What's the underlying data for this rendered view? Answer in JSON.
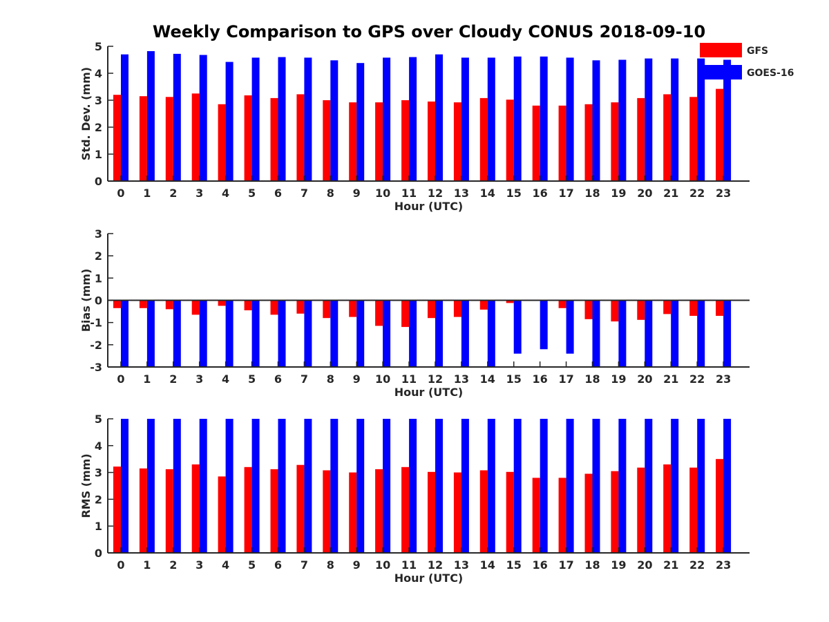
{
  "figure": {
    "title": "Weekly Comparison to GPS over Cloudy CONUS 2018-09-10"
  },
  "colors": {
    "GFS": "#ff0000",
    "GOES-16": "#0000ff",
    "axis": "#262626"
  },
  "chart_data": [
    {
      "type": "bar",
      "xlabel": "Hour (UTC)",
      "ylabel": "Std. Dev. (mm)",
      "ylim": [
        0,
        5
      ],
      "yticks": [
        "0",
        "1",
        "2",
        "3",
        "4",
        "5"
      ],
      "categories": [
        "0",
        "1",
        "2",
        "3",
        "4",
        "5",
        "6",
        "7",
        "8",
        "9",
        "10",
        "11",
        "12",
        "13",
        "14",
        "15",
        "16",
        "17",
        "18",
        "19",
        "20",
        "21",
        "22",
        "23"
      ],
      "legend": {
        "position": "top-right",
        "entries": [
          "GFS",
          "GOES-16"
        ]
      },
      "series": [
        {
          "name": "GFS",
          "values": [
            3.2,
            3.15,
            3.12,
            3.25,
            2.85,
            3.18,
            3.08,
            3.22,
            3.0,
            2.92,
            2.92,
            3.0,
            2.95,
            2.92,
            3.08,
            3.02,
            2.8,
            2.8,
            2.85,
            2.92,
            3.08,
            3.22,
            3.12,
            3.42
          ]
        },
        {
          "name": "GOES-16",
          "values": [
            4.7,
            4.82,
            4.72,
            4.68,
            4.42,
            4.58,
            4.6,
            4.58,
            4.48,
            4.38,
            4.58,
            4.6,
            4.7,
            4.58,
            4.58,
            4.62,
            4.62,
            4.58,
            4.48,
            4.5,
            4.55,
            4.55,
            4.55,
            4.5
          ]
        }
      ]
    },
    {
      "type": "bar",
      "xlabel": "Hour (UTC)",
      "ylabel": "Bias (mm)",
      "ylim": [
        -3,
        3
      ],
      "yticks": [
        "-3",
        "-2",
        "-1",
        "0",
        "1",
        "2",
        "3"
      ],
      "categories": [
        "0",
        "1",
        "2",
        "3",
        "4",
        "5",
        "6",
        "7",
        "8",
        "9",
        "10",
        "11",
        "12",
        "13",
        "14",
        "15",
        "16",
        "17",
        "18",
        "19",
        "20",
        "21",
        "22",
        "23"
      ],
      "series": [
        {
          "name": "GFS",
          "values": [
            -0.35,
            -0.35,
            -0.4,
            -0.65,
            -0.25,
            -0.45,
            -0.65,
            -0.6,
            -0.8,
            -0.75,
            -1.15,
            -1.2,
            -0.8,
            -0.75,
            -0.42,
            -0.12,
            0,
            -0.35,
            -0.85,
            -0.95,
            -0.88,
            -0.62,
            -0.7,
            -0.7
          ]
        },
        {
          "name": "GOES-16",
          "values": [
            -3,
            -3,
            -3,
            -3,
            -3,
            -3,
            -3,
            -3,
            -3,
            -3,
            -3,
            -3,
            -3,
            -3,
            -3,
            -2.4,
            -2.2,
            -2.4,
            -3,
            -3,
            -3,
            -3,
            -3,
            -3
          ]
        }
      ]
    },
    {
      "type": "bar",
      "xlabel": "Hour (UTC)",
      "ylabel": "RMS (mm)",
      "ylim": [
        0,
        5
      ],
      "yticks": [
        "0",
        "1",
        "2",
        "3",
        "4",
        "5"
      ],
      "categories": [
        "0",
        "1",
        "2",
        "3",
        "4",
        "5",
        "6",
        "7",
        "8",
        "9",
        "10",
        "11",
        "12",
        "13",
        "14",
        "15",
        "16",
        "17",
        "18",
        "19",
        "20",
        "21",
        "22",
        "23"
      ],
      "series": [
        {
          "name": "GFS",
          "values": [
            3.22,
            3.15,
            3.12,
            3.3,
            2.85,
            3.2,
            3.12,
            3.28,
            3.08,
            3.0,
            3.12,
            3.2,
            3.02,
            3.0,
            3.08,
            3.02,
            2.8,
            2.8,
            2.95,
            3.05,
            3.18,
            3.3,
            3.18,
            3.5
          ]
        },
        {
          "name": "GOES-16",
          "values": [
            5,
            5,
            5,
            5,
            5,
            5,
            5,
            5,
            5,
            5,
            5,
            5,
            5,
            5,
            5,
            5,
            5,
            5,
            5,
            5,
            5,
            5,
            5,
            5
          ]
        }
      ]
    }
  ]
}
